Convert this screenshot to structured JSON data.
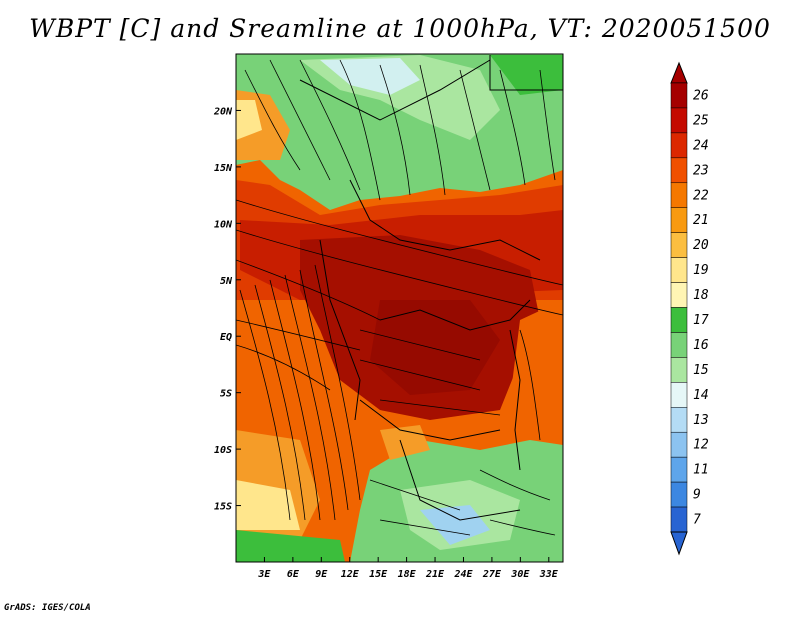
{
  "title": "WBPT [C] and Sreamline at 1000hPa, VT: 2020051500",
  "footer": "GrADS: IGES/COLA",
  "map": {
    "lat_labels": [
      "20N",
      "15N",
      "10N",
      "5N",
      "EQ",
      "5S",
      "10S",
      "15S"
    ],
    "lat_values": [
      20,
      15,
      10,
      5,
      0,
      -5,
      -10,
      -15
    ],
    "lon_labels": [
      "3E",
      "6E",
      "9E",
      "12E",
      "15E",
      "18E",
      "21E",
      "24E",
      "27E",
      "30E",
      "33E"
    ],
    "lon_values": [
      3,
      6,
      9,
      12,
      15,
      18,
      21,
      24,
      27,
      30,
      33
    ],
    "lon_range": [
      0,
      34.5
    ],
    "lat_range": [
      -20,
      25
    ],
    "field_colors": {
      "deep_red": "#a50f00",
      "red": "#c81e00",
      "red_orange": "#e03c00",
      "orange": "#f06400",
      "light_orange": "#f59c28",
      "yellow": "#ffe68c",
      "green_dark": "#3cbe3c",
      "green": "#78d278",
      "green_light": "#aae6a0",
      "cyan_pale": "#d2f0f0",
      "blue_light": "#a0d2f0"
    }
  },
  "colorbar": {
    "labels": [
      "26",
      "25",
      "24",
      "23",
      "22",
      "21",
      "20",
      "19",
      "18",
      "17",
      "16",
      "15",
      "14",
      "13",
      "12",
      "11",
      "9",
      "7"
    ],
    "colors": [
      "#a50000",
      "#c40a00",
      "#dc2800",
      "#f05000",
      "#f57800",
      "#f89a10",
      "#fbbe40",
      "#ffe68c",
      "#fff5b4",
      "#3cbe3c",
      "#78d278",
      "#aae6a0",
      "#e6f7f7",
      "#b4dcf5",
      "#8cc3f0",
      "#5ea5eb",
      "#3c87e1",
      "#2864d2"
    ]
  }
}
